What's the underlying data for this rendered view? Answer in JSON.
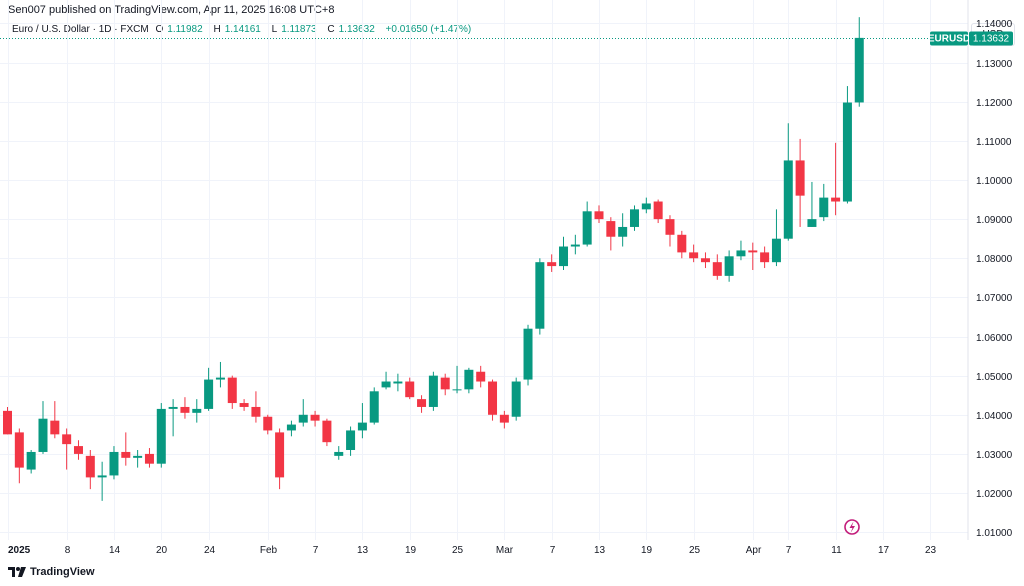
{
  "header": {
    "publisher": "Sen007 published on TradingView.com, Apr 11, 2025 16:08 UTC+8"
  },
  "legend": {
    "symbol": "Euro / U.S. Dollar · 1D · FXCM",
    "open_label": "O",
    "open_value": "1.11982",
    "high_label": "H",
    "high_value": "1.14161",
    "low_label": "L",
    "low_value": "1.11873",
    "close_label": "C",
    "close_value": "1.13632",
    "change": "+0.01650 (+1.47%)"
  },
  "currency_button": "USD",
  "price_tag": {
    "symbol": "EURUSD",
    "price": "1.13632",
    "value": 1.13632
  },
  "footer": {
    "brand": "TradingView"
  },
  "colors": {
    "up": "#089981",
    "down": "#f23645",
    "grid": "#f0f3fa",
    "text": "#131722"
  },
  "chart_data": {
    "type": "candlestick",
    "title": "Euro / U.S. Dollar · 1D · FXCM",
    "ylim": [
      1.008,
      1.146
    ],
    "y_ticks": [
      "1.01000",
      "1.02000",
      "1.03000",
      "1.04000",
      "1.05000",
      "1.06000",
      "1.07000",
      "1.08000",
      "1.09000",
      "1.10000",
      "1.11000",
      "1.12000",
      "1.13000",
      "1.14000"
    ],
    "y_tick_values": [
      1.01,
      1.02,
      1.03,
      1.04,
      1.05,
      1.06,
      1.07,
      1.08,
      1.09,
      1.1,
      1.11,
      1.12,
      1.13,
      1.14
    ],
    "x_ticks": [
      {
        "label": "2025",
        "index": 0,
        "bold": true
      },
      {
        "label": "8",
        "index": 5
      },
      {
        "label": "14",
        "index": 9
      },
      {
        "label": "20",
        "index": 13
      },
      {
        "label": "24",
        "index": 17
      },
      {
        "label": "Feb",
        "index": 22
      },
      {
        "label": "7",
        "index": 26
      },
      {
        "label": "13",
        "index": 30
      },
      {
        "label": "19",
        "index": 34
      },
      {
        "label": "25",
        "index": 38
      },
      {
        "label": "Mar",
        "index": 42
      },
      {
        "label": "7",
        "index": 46
      },
      {
        "label": "13",
        "index": 50
      },
      {
        "label": "19",
        "index": 54
      },
      {
        "label": "25",
        "index": 58
      },
      {
        "label": "Apr",
        "index": 63
      },
      {
        "label": "7",
        "index": 66
      },
      {
        "label": "11",
        "index": 70
      },
      {
        "label": "17",
        "index": 74
      },
      {
        "label": "23",
        "index": 78
      }
    ],
    "candles": [
      {
        "date": "Dec 31",
        "o": 1.041,
        "h": 1.042,
        "l": 1.035,
        "c": 1.035
      },
      {
        "date": "Jan 2",
        "o": 1.0355,
        "h": 1.0365,
        "l": 1.0225,
        "c": 1.0265
      },
      {
        "date": "Jan 3",
        "o": 1.026,
        "h": 1.031,
        "l": 1.025,
        "c": 1.0305
      },
      {
        "date": "Jan 6",
        "o": 1.0305,
        "h": 1.0435,
        "l": 1.03,
        "c": 1.039
      },
      {
        "date": "Jan 7",
        "o": 1.0385,
        "h": 1.0435,
        "l": 1.034,
        "c": 1.035
      },
      {
        "date": "Jan 8",
        "o": 1.035,
        "h": 1.0365,
        "l": 1.026,
        "c": 1.0325
      },
      {
        "date": "Jan 9",
        "o": 1.032,
        "h": 1.0335,
        "l": 1.0285,
        "c": 1.03
      },
      {
        "date": "Jan 10",
        "o": 1.0295,
        "h": 1.031,
        "l": 1.021,
        "c": 1.024
      },
      {
        "date": "Jan 13",
        "o": 1.024,
        "h": 1.028,
        "l": 1.018,
        "c": 1.0245
      },
      {
        "date": "Jan 14",
        "o": 1.0245,
        "h": 1.032,
        "l": 1.0235,
        "c": 1.0305
      },
      {
        "date": "Jan 15",
        "o": 1.0305,
        "h": 1.0355,
        "l": 1.027,
        "c": 1.029
      },
      {
        "date": "Jan 16",
        "o": 1.029,
        "h": 1.031,
        "l": 1.0265,
        "c": 1.0295
      },
      {
        "date": "Jan 17",
        "o": 1.03,
        "h": 1.0315,
        "l": 1.0265,
        "c": 1.0275
      },
      {
        "date": "Jan 20",
        "o": 1.0275,
        "h": 1.043,
        "l": 1.0265,
        "c": 1.0415
      },
      {
        "date": "Jan 21",
        "o": 1.0415,
        "h": 1.044,
        "l": 1.0345,
        "c": 1.042
      },
      {
        "date": "Jan 22",
        "o": 1.042,
        "h": 1.0445,
        "l": 1.039,
        "c": 1.0405
      },
      {
        "date": "Jan 23",
        "o": 1.0405,
        "h": 1.044,
        "l": 1.038,
        "c": 1.0415
      },
      {
        "date": "Jan 24",
        "o": 1.0415,
        "h": 1.052,
        "l": 1.041,
        "c": 1.049
      },
      {
        "date": "Jan 27",
        "o": 1.049,
        "h": 1.0535,
        "l": 1.047,
        "c": 1.0495
      },
      {
        "date": "Jan 28",
        "o": 1.0495,
        "h": 1.05,
        "l": 1.0415,
        "c": 1.043
      },
      {
        "date": "Jan 29",
        "o": 1.043,
        "h": 1.044,
        "l": 1.041,
        "c": 1.042
      },
      {
        "date": "Jan 30",
        "o": 1.042,
        "h": 1.046,
        "l": 1.038,
        "c": 1.0395
      },
      {
        "date": "Jan 31",
        "o": 1.0395,
        "h": 1.04,
        "l": 1.035,
        "c": 1.036
      },
      {
        "date": "Feb 3",
        "o": 1.0355,
        "h": 1.0365,
        "l": 1.021,
        "c": 1.024
      },
      {
        "date": "Feb 4",
        "o": 1.036,
        "h": 1.0385,
        "l": 1.0345,
        "c": 1.0375
      },
      {
        "date": "Feb 5",
        "o": 1.038,
        "h": 1.044,
        "l": 1.037,
        "c": 1.04
      },
      {
        "date": "Feb 6",
        "o": 1.04,
        "h": 1.041,
        "l": 1.037,
        "c": 1.0385
      },
      {
        "date": "Feb 7",
        "o": 1.0385,
        "h": 1.039,
        "l": 1.032,
        "c": 1.033
      },
      {
        "date": "Feb 10",
        "o": 1.0295,
        "h": 1.032,
        "l": 1.0285,
        "c": 1.0305
      },
      {
        "date": "Feb 11",
        "o": 1.031,
        "h": 1.037,
        "l": 1.0295,
        "c": 1.036
      },
      {
        "date": "Feb 12",
        "o": 1.036,
        "h": 1.043,
        "l": 1.034,
        "c": 1.038
      },
      {
        "date": "Feb 13",
        "o": 1.038,
        "h": 1.047,
        "l": 1.0375,
        "c": 1.046
      },
      {
        "date": "Feb 14",
        "o": 1.047,
        "h": 1.051,
        "l": 1.0465,
        "c": 1.0485
      },
      {
        "date": "Feb 17",
        "o": 1.048,
        "h": 1.0505,
        "l": 1.046,
        "c": 1.0485
      },
      {
        "date": "Feb 18",
        "o": 1.0485,
        "h": 1.0495,
        "l": 1.044,
        "c": 1.0445
      },
      {
        "date": "Feb 19",
        "o": 1.044,
        "h": 1.045,
        "l": 1.0405,
        "c": 1.042
      },
      {
        "date": "Feb 20",
        "o": 1.042,
        "h": 1.051,
        "l": 1.041,
        "c": 1.05
      },
      {
        "date": "Feb 21",
        "o": 1.0495,
        "h": 1.0505,
        "l": 1.045,
        "c": 1.0465
      },
      {
        "date": "Feb 24",
        "o": 1.0465,
        "h": 1.0525,
        "l": 1.0455,
        "c": 1.0465
      },
      {
        "date": "Feb 25",
        "o": 1.0465,
        "h": 1.052,
        "l": 1.0455,
        "c": 1.0515
      },
      {
        "date": "Feb 26",
        "o": 1.051,
        "h": 1.0525,
        "l": 1.047,
        "c": 1.0485
      },
      {
        "date": "Feb 27",
        "o": 1.0485,
        "h": 1.049,
        "l": 1.0385,
        "c": 1.04
      },
      {
        "date": "Feb 28",
        "o": 1.04,
        "h": 1.041,
        "l": 1.0365,
        "c": 1.038
      },
      {
        "date": "Mar 3",
        "o": 1.0395,
        "h": 1.0495,
        "l": 1.0385,
        "c": 1.0485
      },
      {
        "date": "Mar 4",
        "o": 1.049,
        "h": 1.063,
        "l": 1.0475,
        "c": 1.062
      },
      {
        "date": "Mar 5",
        "o": 1.062,
        "h": 1.08,
        "l": 1.0605,
        "c": 1.079
      },
      {
        "date": "Mar 6",
        "o": 1.079,
        "h": 1.081,
        "l": 1.0765,
        "c": 1.078
      },
      {
        "date": "Mar 7",
        "o": 1.078,
        "h": 1.0855,
        "l": 1.077,
        "c": 1.083
      },
      {
        "date": "Mar 10",
        "o": 1.083,
        "h": 1.086,
        "l": 1.081,
        "c": 1.0835
      },
      {
        "date": "Mar 11",
        "o": 1.0835,
        "h": 1.0945,
        "l": 1.083,
        "c": 1.092
      },
      {
        "date": "Mar 12",
        "o": 1.092,
        "h": 1.0935,
        "l": 1.089,
        "c": 1.09
      },
      {
        "date": "Mar 13",
        "o": 1.0895,
        "h": 1.0905,
        "l": 1.082,
        "c": 1.0855
      },
      {
        "date": "Mar 14",
        "o": 1.0855,
        "h": 1.0915,
        "l": 1.083,
        "c": 1.088
      },
      {
        "date": "Mar 17",
        "o": 1.088,
        "h": 1.0935,
        "l": 1.087,
        "c": 1.0925
      },
      {
        "date": "Mar 18",
        "o": 1.0925,
        "h": 1.0955,
        "l": 1.0915,
        "c": 1.094
      },
      {
        "date": "Mar 19",
        "o": 1.0945,
        "h": 1.095,
        "l": 1.089,
        "c": 1.09
      },
      {
        "date": "Mar 20",
        "o": 1.09,
        "h": 1.091,
        "l": 1.083,
        "c": 1.086
      },
      {
        "date": "Mar 21",
        "o": 1.086,
        "h": 1.087,
        "l": 1.08,
        "c": 1.0815
      },
      {
        "date": "Mar 24",
        "o": 1.0815,
        "h": 1.0835,
        "l": 1.079,
        "c": 1.08
      },
      {
        "date": "Mar 25",
        "o": 1.08,
        "h": 1.0815,
        "l": 1.0775,
        "c": 1.079
      },
      {
        "date": "Mar 26",
        "o": 1.079,
        "h": 1.081,
        "l": 1.0745,
        "c": 1.0755
      },
      {
        "date": "Mar 27",
        "o": 1.0755,
        "h": 1.082,
        "l": 1.074,
        "c": 1.0805
      },
      {
        "date": "Mar 28",
        "o": 1.0805,
        "h": 1.0845,
        "l": 1.0795,
        "c": 1.082
      },
      {
        "date": "Mar 31",
        "o": 1.082,
        "h": 1.084,
        "l": 1.077,
        "c": 1.0815
      },
      {
        "date": "Apr 1",
        "o": 1.0815,
        "h": 1.083,
        "l": 1.0775,
        "c": 1.079
      },
      {
        "date": "Apr 2",
        "o": 1.079,
        "h": 1.0925,
        "l": 1.078,
        "c": 1.085
      },
      {
        "date": "Apr 3",
        "o": 1.085,
        "h": 1.1145,
        "l": 1.0845,
        "c": 1.105
      },
      {
        "date": "Apr 4",
        "o": 1.105,
        "h": 1.1105,
        "l": 1.088,
        "c": 1.096
      },
      {
        "date": "Apr 7",
        "o": 1.088,
        "h": 1.0995,
        "l": 1.088,
        "c": 1.09
      },
      {
        "date": "Apr 8",
        "o": 1.0905,
        "h": 1.099,
        "l": 1.0895,
        "c": 1.0955
      },
      {
        "date": "Apr 9",
        "o": 1.0955,
        "h": 1.1095,
        "l": 1.091,
        "c": 1.0945
      },
      {
        "date": "Apr 10",
        "o": 1.0945,
        "h": 1.124,
        "l": 1.094,
        "c": 1.1198
      },
      {
        "date": "Apr 11",
        "o": 1.11982,
        "h": 1.14161,
        "l": 1.11873,
        "c": 1.13632
      }
    ]
  }
}
